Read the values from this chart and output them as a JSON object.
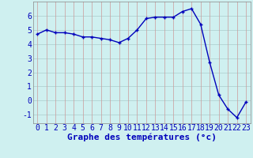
{
  "hours": [
    0,
    1,
    2,
    3,
    4,
    5,
    6,
    7,
    8,
    9,
    10,
    11,
    12,
    13,
    14,
    15,
    16,
    17,
    18,
    19,
    20,
    21,
    22,
    23
  ],
  "temps": [
    4.7,
    5.0,
    4.8,
    4.8,
    4.7,
    4.5,
    4.5,
    4.4,
    4.3,
    4.1,
    4.4,
    5.0,
    5.8,
    5.9,
    5.9,
    5.9,
    6.3,
    6.5,
    5.4,
    2.7,
    0.4,
    -0.6,
    -1.2,
    -0.1
  ],
  "xlim": [
    -0.5,
    23.5
  ],
  "ylim": [
    -1.6,
    7.0
  ],
  "yticks": [
    -1,
    0,
    1,
    2,
    3,
    4,
    5,
    6
  ],
  "xticks": [
    0,
    1,
    2,
    3,
    4,
    5,
    6,
    7,
    8,
    9,
    10,
    11,
    12,
    13,
    14,
    15,
    16,
    17,
    18,
    19,
    20,
    21,
    22,
    23
  ],
  "xlabel": "Graphe des températures (°c)",
  "line_color": "#0000bb",
  "marker": "+",
  "bg_color": "#cff0f0",
  "grid_color_h": "#aacccc",
  "grid_color_v": "#cc9999",
  "xlabel_fontsize": 8,
  "tick_fontsize": 7,
  "linewidth": 1.0,
  "markersize": 3.5,
  "markeredgewidth": 1.0
}
